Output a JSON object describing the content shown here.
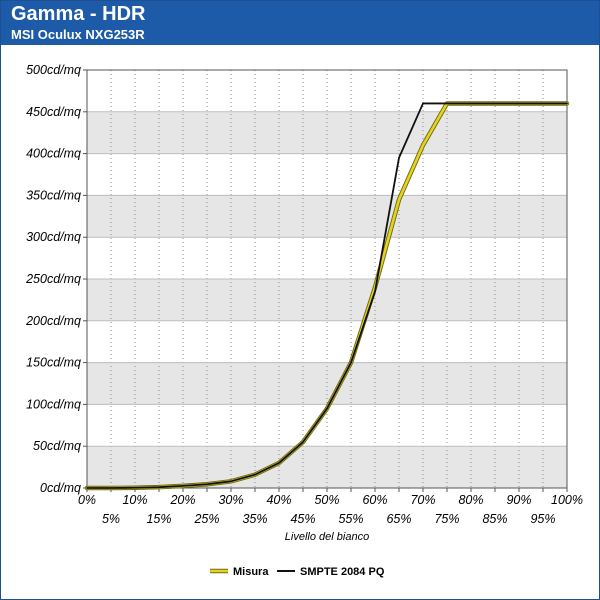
{
  "header": {
    "title": "Gamma - HDR",
    "subtitle": "MSI  Oculux NXG253R"
  },
  "chart_data": {
    "type": "line",
    "xlabel": "Livello del bianco",
    "ylabel": "",
    "x": [
      0,
      5,
      10,
      15,
      20,
      25,
      30,
      35,
      40,
      45,
      50,
      55,
      60,
      65,
      70,
      75,
      80,
      85,
      90,
      95,
      100
    ],
    "x_tick_labels": [
      "0%",
      "5%",
      "10%",
      "15%",
      "20%",
      "25%",
      "30%",
      "35%",
      "40%",
      "45%",
      "50%",
      "55%",
      "60%",
      "65%",
      "70%",
      "75%",
      "80%",
      "85%",
      "90%",
      "95%",
      "100%"
    ],
    "y_tick_labels": [
      "0cd/mq",
      "50cd/mq",
      "100cd/mq",
      "150cd/mq",
      "200cd/mq",
      "250cd/mq",
      "300cd/mq",
      "350cd/mq",
      "400cd/mq",
      "450cd/mq",
      "500cd/mq"
    ],
    "ylim": [
      0,
      500
    ],
    "xlim": [
      0,
      100
    ],
    "grid": true,
    "legend_position": "bottom",
    "series": [
      {
        "name": "Misura",
        "color": "#e8d21c",
        "values": [
          0,
          0,
          0.3,
          1,
          2.5,
          4.5,
          8,
          16,
          30,
          55,
          95,
          150,
          240,
          345,
          410,
          460,
          460,
          460,
          460,
          460,
          460
        ]
      },
      {
        "name": "SMPTE 2084 PQ",
        "color": "#111111",
        "values": [
          0,
          0,
          0.3,
          1,
          2.5,
          4.5,
          8,
          16,
          30,
          55,
          95,
          150,
          235,
          395,
          460,
          460,
          460,
          460,
          460,
          460,
          460
        ]
      }
    ]
  }
}
